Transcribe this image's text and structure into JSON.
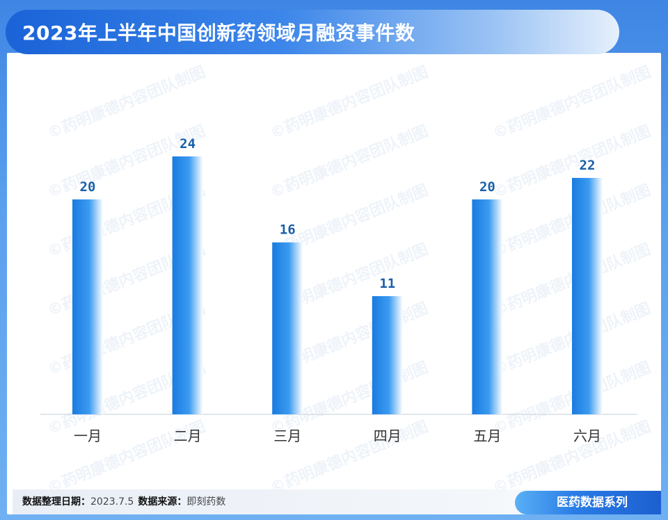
{
  "header": {
    "title": "2023年上半年中国创新药领域月融资事件数"
  },
  "watermark": {
    "text": "©药明康德内容团队制图"
  },
  "chart_data": {
    "type": "bar",
    "title": "2023年上半年中国创新药领域月融资事件数",
    "categories": [
      "一月",
      "二月",
      "三月",
      "四月",
      "五月",
      "六月"
    ],
    "values": [
      20,
      24,
      16,
      11,
      20,
      22
    ],
    "xlabel": "",
    "ylabel": "",
    "ylim": [
      0,
      24
    ],
    "grid": false,
    "legend": "none",
    "bar_color_start": "#1a7be0",
    "bar_color_end": "#ffffff",
    "label_color": "#1a5fa8"
  },
  "footer": {
    "date_label": "数据整理日期：",
    "date_value": "2023.7.5",
    "source_label": "数据来源：",
    "source_value": "即刻药数",
    "series": "医药数据系列"
  },
  "colors": {
    "frame": "#4a8fe8",
    "title_start": "#1a63d8",
    "axis": "#d7dde6"
  }
}
